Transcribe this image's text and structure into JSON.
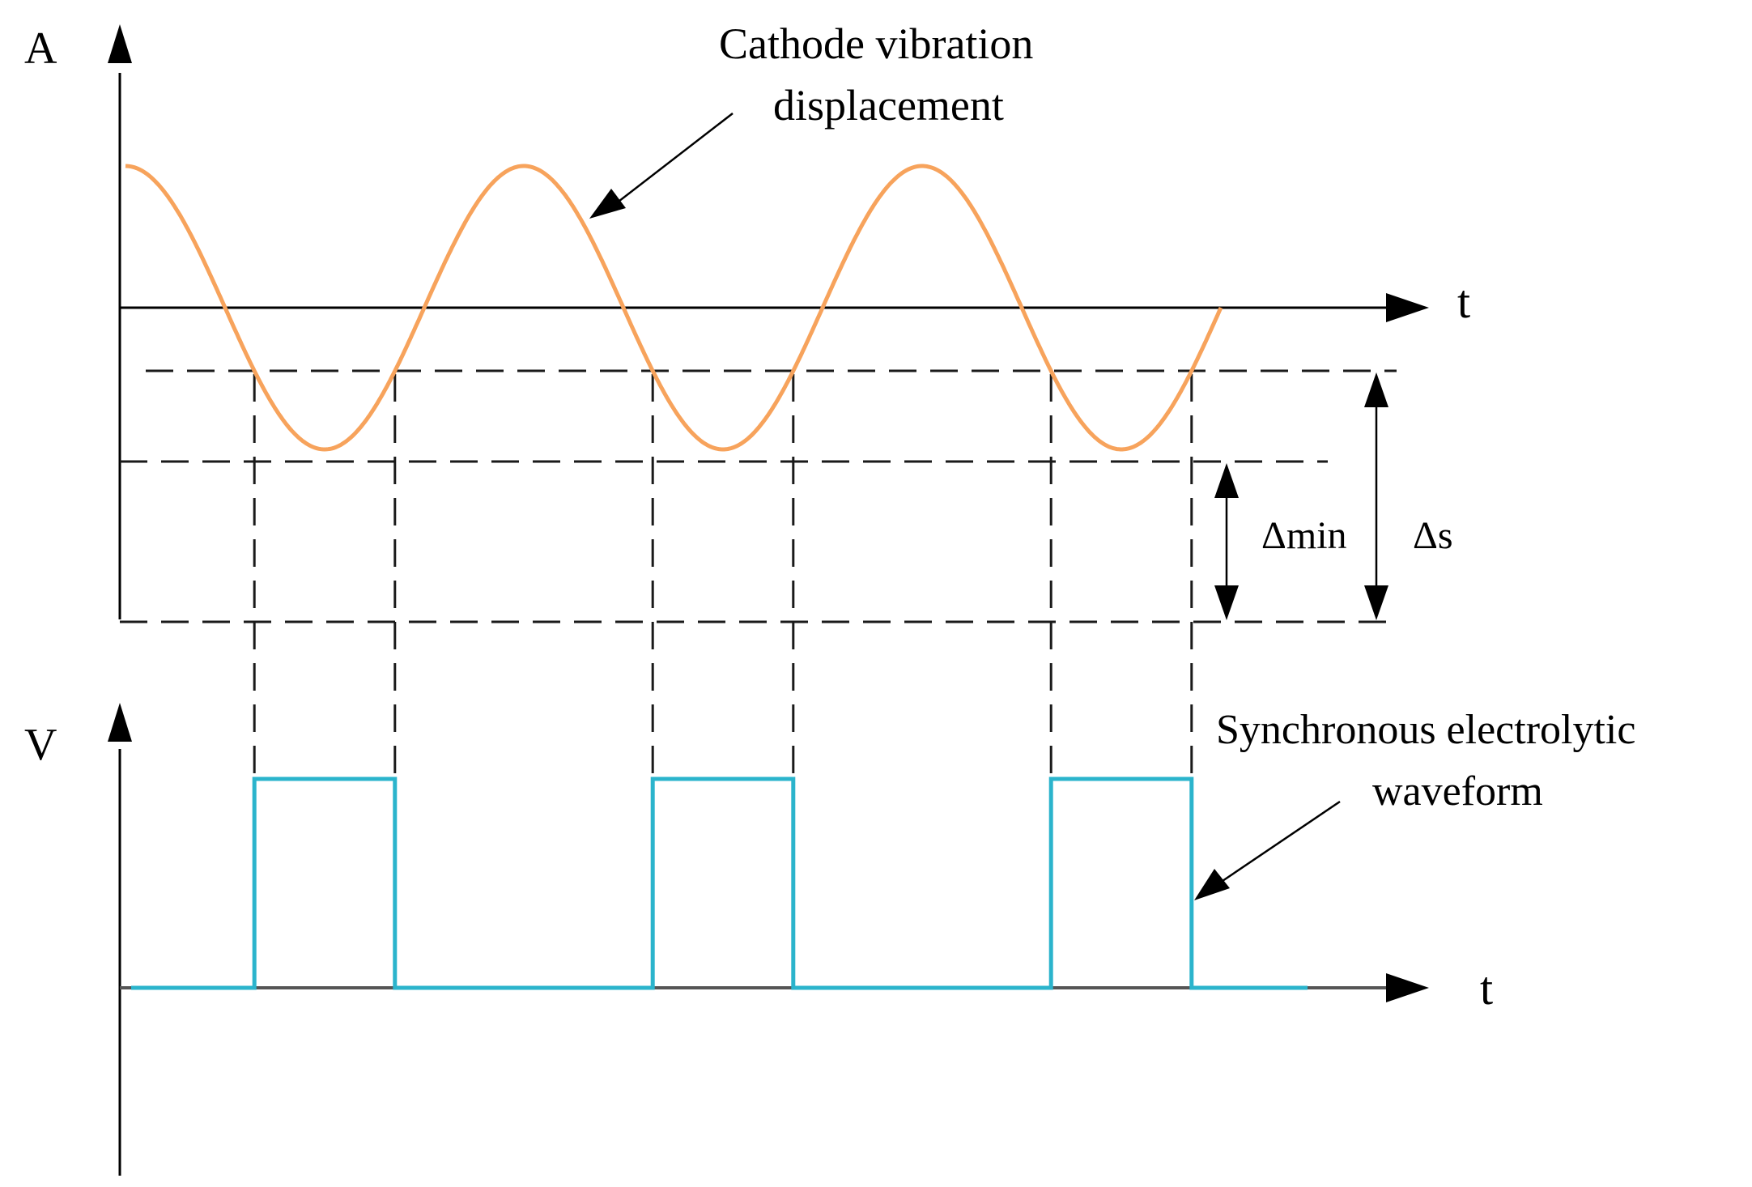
{
  "top_panel": {
    "y_label": "A",
    "x_label": "t",
    "curve_label_line1": "Cathode vibration",
    "curve_label_line2": "displacement",
    "delta_min_label": "Δmin",
    "delta_s_label": "Δs"
  },
  "bottom_panel": {
    "y_label": "V",
    "x_label": "t",
    "curve_label_line1": "Synchronous electrolytic",
    "curve_label_line2": "waveform"
  },
  "colors": {
    "displacement": "#F7A35C",
    "waveform": "#2BB4CC",
    "axis": "#000000",
    "guides": "#1a1a1a"
  },
  "sine": {
    "cycles": 2.75,
    "phase": "starts at maximum"
  },
  "pulses": {
    "count": 3,
    "note": "voltage is high while the displacement is below the upper dashed threshold"
  }
}
